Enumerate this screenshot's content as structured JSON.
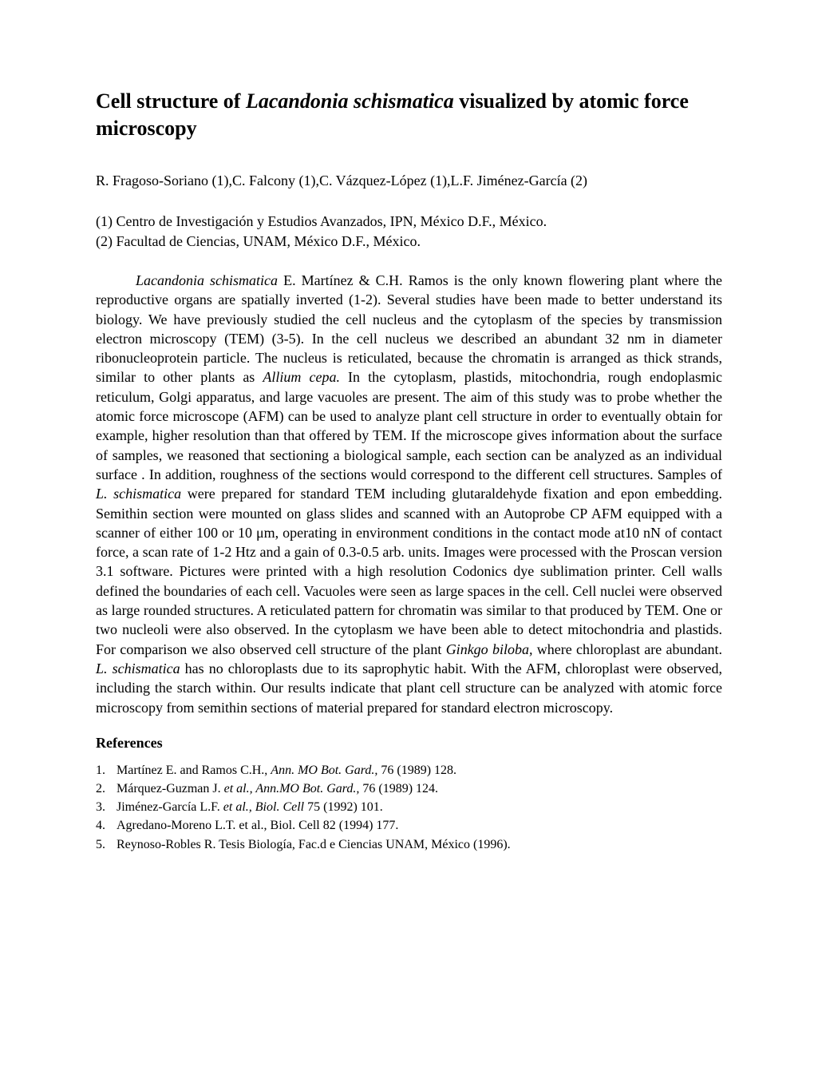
{
  "title": {
    "pre": "Cell structure of ",
    "italic": "Lacandonia schismatica",
    "post": " visualized by atomic force microscopy"
  },
  "authors": "R. Fragoso-Soriano (1),C. Falcony (1),C. Vázquez-López (1),L.F. Jiménez-García (2)",
  "affiliations": [
    "(1) Centro de Investigación y Estudios Avanzados, IPN, México D.F., México.",
    "(2) Facultad de Ciencias, UNAM, México D.F., México."
  ],
  "abstract": {
    "part1_italic": "Lacandonia schismatica",
    "part1_text": " E. Martínez & C.H. Ramos is the only known flowering plant where the reproductive organs are spatially inverted (1-2). Several studies have been made to better understand its biology. We have previously studied the cell nucleus and the cytoplasm of the species by transmission electron microscopy (TEM) (3-5). In the cell nucleus we described an abundant  32 nm in diameter ribonucleoprotein particle. The nucleus is reticulated, because the chromatin is arranged as thick strands, similar to other plants as ",
    "part2_italic": "Allium cepa.",
    "part2_text": " In the cytoplasm, plastids, mitochondria, rough endoplasmic reticulum, Golgi apparatus, and large vacuoles are present. The aim of this study was to probe whether the atomic force microscope (AFM) can be used to analyze plant cell structure in order to eventually obtain for example, higher resolution than that offered by TEM. If the microscope gives information about the surface of samples, we reasoned that sectioning a biological sample, each section can be analyzed as an individual surface . In addition, roughness of the sections would correspond to the different cell structures. Samples of ",
    "part3_italic": "L. schismatica",
    "part3_text": " were prepared for standard TEM including glutaraldehyde fixation and epon embedding. Semithin section were mounted on glass slides and scanned with an Autoprobe CP AFM equipped with a scanner of either 100 or 10 μm, operating in environment conditions in the contact mode at10 nN of contact force, a scan rate of 1-2  Htz and a gain of 0.3-0.5 arb. units. Images were processed with the Proscan version 3.1 software. Pictures were printed with a high resolution Codonics dye sublimation printer. Cell walls defined the boundaries of each cell. Vacuoles were seen as large spaces in the cell. Cell nuclei were observed as large rounded structures. A reticulated pattern for chromatin was similar to that produced by TEM. One or two nucleoli were also observed. In the cytoplasm we have been able to detect mitochondria and plastids. For comparison we also observed cell structure of the plant ",
    "part4_italic": "Ginkgo biloba,",
    "part4_text": " where chloroplast are abundant. ",
    "part5_italic": "L. schismatica",
    "part5_text": " has no chloroplasts due to its saprophytic habit. With the AFM, chloroplast were observed, including the starch within. Our results indicate that plant cell structure can be analyzed with atomic force microscopy from semithin sections of material prepared for standard electron microscopy."
  },
  "references_heading": "References",
  "references": [
    {
      "num": "1.",
      "pre": "Martínez E. and Ramos C.H., ",
      "italic": "Ann. MO Bot. Gard.,",
      "post": " 76 (1989) 128."
    },
    {
      "num": "2.",
      "pre": "Márquez-Guzman J. ",
      "italic": "et al., Ann.MO Bot. Gard.,",
      "post": " 76 (1989) 124."
    },
    {
      "num": "3.",
      "pre": "Jiménez-García L.F. ",
      "italic": "et al., Biol. Cell",
      "post": " 75 (1992) 101."
    },
    {
      "num": "4.",
      "pre": "Agredano-Moreno L.T. et al., Biol. Cell 82 (1994) 177.",
      "italic": "",
      "post": ""
    },
    {
      "num": "5.",
      "pre": "Reynoso-Robles R. Tesis Biología, Fac.d e Ciencias UNAM, México (1996).",
      "italic": "",
      "post": ""
    }
  ]
}
